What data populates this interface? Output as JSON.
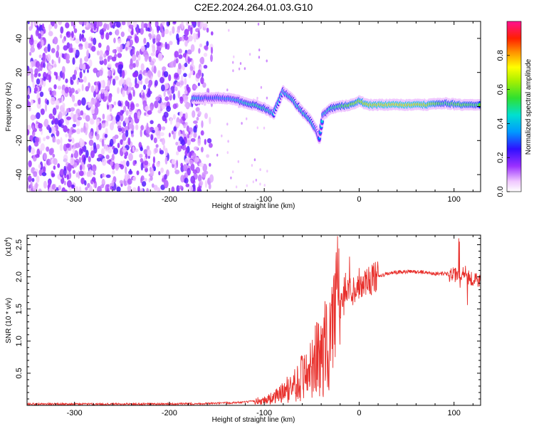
{
  "figure": {
    "title": "C2E2.2024.264.01.03.G10"
  },
  "chart_data": [
    {
      "type": "heatmap",
      "title": "C2E2.2024.264.01.03.G10",
      "xlabel": "Height of straight line (km)",
      "ylabel": "Frequency (Hz)",
      "xlim": [
        -350,
        128
      ],
      "ylim": [
        -50,
        50
      ],
      "x_ticks": [
        -300,
        -200,
        -100,
        0,
        100
      ],
      "y_ticks": [
        -40,
        -20,
        0,
        20,
        40
      ],
      "colorbar": {
        "label": "Normalized spectral amplitude",
        "range": [
          0,
          1
        ],
        "ticks": [
          0.0,
          0.2,
          0.4,
          0.6,
          0.8
        ],
        "tick_labels": [
          "0.0",
          "0.2",
          "0.4",
          "0.6",
          "0.8"
        ]
      },
      "noise_region": {
        "x_from": -350,
        "x_to": -155,
        "note_amplitude": 0.25
      },
      "ridge": [
        {
          "x": -175,
          "y": 5,
          "amp": 0.5
        },
        {
          "x": -160,
          "y": 5,
          "amp": 0.35
        },
        {
          "x": -145,
          "y": 5,
          "amp": 0.4
        },
        {
          "x": -130,
          "y": 4,
          "amp": 0.45
        },
        {
          "x": -120,
          "y": 2,
          "amp": 0.5
        },
        {
          "x": -110,
          "y": 1,
          "amp": 0.55
        },
        {
          "x": -100,
          "y": -1,
          "amp": 0.55
        },
        {
          "x": -90,
          "y": -4,
          "amp": 0.45
        },
        {
          "x": -80,
          "y": 9,
          "amp": 0.45
        },
        {
          "x": -70,
          "y": 4,
          "amp": 0.5
        },
        {
          "x": -60,
          "y": -3,
          "amp": 0.5
        },
        {
          "x": -50,
          "y": -9,
          "amp": 0.5
        },
        {
          "x": -45,
          "y": -14,
          "amp": 0.4
        },
        {
          "x": -42,
          "y": -19,
          "amp": 0.35
        },
        {
          "x": -38,
          "y": -5,
          "amp": 0.45
        },
        {
          "x": -30,
          "y": -1,
          "amp": 0.55
        },
        {
          "x": -20,
          "y": 0,
          "amp": 0.6
        },
        {
          "x": -10,
          "y": 1,
          "amp": 0.7
        },
        {
          "x": 0,
          "y": 3,
          "amp": 0.75
        },
        {
          "x": 10,
          "y": 1,
          "amp": 0.85
        },
        {
          "x": 30,
          "y": 1,
          "amp": 0.9
        },
        {
          "x": 50,
          "y": 1,
          "amp": 0.9
        },
        {
          "x": 70,
          "y": 1,
          "amp": 0.85
        },
        {
          "x": 90,
          "y": 2,
          "amp": 0.6
        },
        {
          "x": 105,
          "y": 1,
          "amp": 0.7
        },
        {
          "x": 128,
          "y": 1,
          "amp": 0.6
        }
      ]
    },
    {
      "type": "line",
      "xlabel": "Height of straight line (km)",
      "ylabel": "SNR (10 * v/v)",
      "y_multiplier": "(x10",
      "y_multiplier_exp": "4",
      "xlim": [
        -350,
        128
      ],
      "ylim": [
        0,
        2.65
      ],
      "x_ticks": [
        -300,
        -200,
        -100,
        0,
        100
      ],
      "y_ticks": [
        0.5,
        1.0,
        1.5,
        2.0,
        2.5
      ],
      "y_tick_labels": [
        "0.5",
        "1.0",
        "1.5",
        "2.0",
        "2.5"
      ],
      "color": "#e8302c",
      "series": [
        {
          "x": [
            -350,
            -300,
            -250,
            -200,
            -150,
            -120,
            -100,
            -90,
            -80,
            -70,
            -60,
            -50,
            -40,
            -30,
            -20,
            -10,
            0,
            10,
            20,
            30,
            40,
            50,
            60,
            70,
            80,
            90,
            100,
            105,
            110,
            115,
            128
          ],
          "y": [
            0.02,
            0.02,
            0.02,
            0.02,
            0.03,
            0.05,
            0.08,
            0.12,
            0.2,
            0.3,
            0.45,
            0.65,
            0.75,
            1.1,
            1.55,
            1.75,
            1.9,
            1.95,
            2.0,
            2.05,
            2.07,
            2.08,
            2.08,
            2.07,
            2.05,
            2.05,
            2.03,
            2.0,
            2.1,
            2.0,
            1.93
          ]
        }
      ]
    }
  ]
}
